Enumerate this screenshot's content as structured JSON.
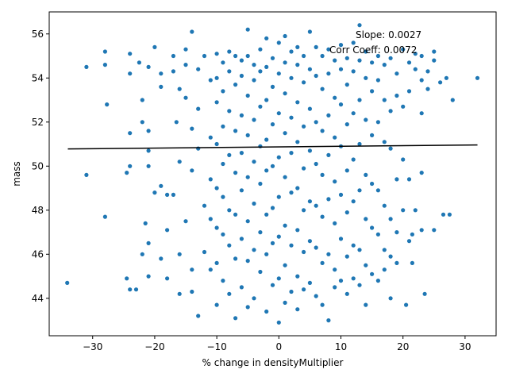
{
  "chart_data": {
    "type": "scatter",
    "title": "",
    "xlabel": "% change in densityMultiplier",
    "ylabel": "mass",
    "xlim": [
      -37,
      35
    ],
    "ylim": [
      42.3,
      57.0
    ],
    "xticks": [
      -30,
      -20,
      -10,
      0,
      10,
      20,
      30
    ],
    "xtick_labels": [
      "−30",
      "−20",
      "−10",
      "0",
      "10",
      "20",
      "30"
    ],
    "yticks": [
      44,
      46,
      48,
      50,
      52,
      54,
      56
    ],
    "ytick_labels": [
      "44",
      "46",
      "48",
      "50",
      "52",
      "54",
      "56"
    ],
    "grid": false,
    "marker_color": "#1f77b4",
    "line_color": "#000000",
    "fit_line": {
      "x": [
        -34,
        32
      ],
      "y": [
        50.78,
        50.96
      ]
    },
    "annotations": [
      "Slope: 0.0027",
      "Corr Coeff: 0.0072"
    ],
    "points": [
      [
        -34.1,
        44.7
      ],
      [
        -31.0,
        54.5
      ],
      [
        -31.0,
        49.6
      ],
      [
        -28.0,
        55.2
      ],
      [
        -28.0,
        54.6
      ],
      [
        -27.7,
        52.8
      ],
      [
        -28.0,
        47.7
      ],
      [
        -24.0,
        55.1
      ],
      [
        -24.0,
        54.2
      ],
      [
        -24.0,
        51.5
      ],
      [
        -24.5,
        49.7
      ],
      [
        -24.0,
        50.0
      ],
      [
        -24.5,
        44.9
      ],
      [
        -24.0,
        44.4
      ],
      [
        -23.0,
        44.4
      ],
      [
        -22.0,
        53.0
      ],
      [
        -22.0,
        52.0
      ],
      [
        -21.0,
        51.6
      ],
      [
        -20.0,
        55.4
      ],
      [
        -22.5,
        54.7
      ],
      [
        -21.0,
        54.5
      ],
      [
        -21.0,
        50.7
      ],
      [
        -21.0,
        50.0
      ],
      [
        -20.0,
        48.8
      ],
      [
        -21.5,
        47.4
      ],
      [
        -21.0,
        46.5
      ],
      [
        -22.0,
        46.0
      ],
      [
        -21.0,
        45.0
      ],
      [
        -19.0,
        54.2
      ],
      [
        -19.0,
        53.6
      ],
      [
        -19.0,
        49.1
      ],
      [
        -18.0,
        48.7
      ],
      [
        -18.0,
        47.1
      ],
      [
        -19.0,
        45.8
      ],
      [
        -18.0,
        44.9
      ],
      [
        -17.0,
        55.0
      ],
      [
        -17.0,
        54.3
      ],
      [
        -16.0,
        53.5
      ],
      [
        -16.5,
        52.0
      ],
      [
        -16.0,
        50.2
      ],
      [
        -17.0,
        48.7
      ],
      [
        -16.0,
        46.0
      ],
      [
        -16.0,
        44.2
      ],
      [
        -15.0,
        55.3
      ],
      [
        -15.0,
        54.6
      ],
      [
        -15.0,
        53.1
      ],
      [
        -14.0,
        56.1
      ],
      [
        -14.0,
        51.7
      ],
      [
        -14.0,
        49.8
      ],
      [
        -15.0,
        47.5
      ],
      [
        -14.0,
        45.3
      ],
      [
        -14.0,
        44.3
      ],
      [
        -13.0,
        54.4
      ],
      [
        -13.0,
        52.6
      ],
      [
        -13.0,
        50.8
      ],
      [
        -12.0,
        48.2
      ],
      [
        -12.0,
        46.1
      ],
      [
        -13.0,
        43.2
      ],
      [
        -12.0,
        55.0
      ],
      [
        -11.0,
        53.9
      ],
      [
        -11.0,
        51.3
      ],
      [
        -11.0,
        49.4
      ],
      [
        -11.0,
        47.6
      ],
      [
        -11.0,
        45.3
      ],
      [
        -10.0,
        55.1
      ],
      [
        -10.0,
        54.0
      ],
      [
        -10.0,
        52.9
      ],
      [
        -10.0,
        51.0
      ],
      [
        -10.0,
        49.0
      ],
      [
        -10.0,
        47.2
      ],
      [
        -10.0,
        45.6
      ],
      [
        -10.0,
        43.7
      ],
      [
        -9.0,
        54.7
      ],
      [
        -9.0,
        53.4
      ],
      [
        -9.0,
        51.8
      ],
      [
        -9.0,
        50.1
      ],
      [
        -9.0,
        48.6
      ],
      [
        -9.0,
        46.9
      ],
      [
        -9.0,
        44.8
      ],
      [
        -8.0,
        55.2
      ],
      [
        -8.0,
        54.3
      ],
      [
        -8.0,
        52.5
      ],
      [
        -8.0,
        50.5
      ],
      [
        -8.0,
        48.0
      ],
      [
        -8.0,
        46.4
      ],
      [
        -8.0,
        44.2
      ],
      [
        -7.0,
        55.0
      ],
      [
        -7.0,
        53.7
      ],
      [
        -7.0,
        51.6
      ],
      [
        -7.0,
        49.7
      ],
      [
        -7.0,
        47.8
      ],
      [
        -7.0,
        45.8
      ],
      [
        -7.0,
        43.1
      ],
      [
        -6.0,
        54.8
      ],
      [
        -6.0,
        54.1
      ],
      [
        -6.0,
        52.3
      ],
      [
        -6.0,
        50.6
      ],
      [
        -6.0,
        48.9
      ],
      [
        -6.0,
        46.7
      ],
      [
        -6.0,
        44.5
      ],
      [
        -5.0,
        56.2
      ],
      [
        -5.0,
        55.0
      ],
      [
        -5.0,
        53.2
      ],
      [
        -5.0,
        51.4
      ],
      [
        -5.0,
        49.5
      ],
      [
        -5.0,
        47.5
      ],
      [
        -5.0,
        45.7
      ],
      [
        -5.0,
        43.6
      ],
      [
        -4.0,
        54.6
      ],
      [
        -4.0,
        53.9
      ],
      [
        -4.0,
        52.1
      ],
      [
        -4.0,
        50.2
      ],
      [
        -4.0,
        48.3
      ],
      [
        -4.0,
        46.2
      ],
      [
        -4.0,
        44.0
      ],
      [
        -3.0,
        55.3
      ],
      [
        -3.0,
        54.3
      ],
      [
        -3.0,
        52.7
      ],
      [
        -3.0,
        50.9
      ],
      [
        -3.0,
        49.2
      ],
      [
        -3.0,
        47.0
      ],
      [
        -3.0,
        45.2
      ],
      [
        -2.0,
        55.8
      ],
      [
        -2.0,
        54.5
      ],
      [
        -2.0,
        53.0
      ],
      [
        -2.0,
        51.2
      ],
      [
        -2.0,
        49.8
      ],
      [
        -2.0,
        47.8
      ],
      [
        -2.0,
        46.0
      ],
      [
        -2.0,
        43.4
      ],
      [
        -1.0,
        54.9
      ],
      [
        -1.0,
        53.6
      ],
      [
        -1.0,
        51.9
      ],
      [
        -1.0,
        50.0
      ],
      [
        -1.0,
        48.1
      ],
      [
        -1.0,
        46.5
      ],
      [
        -1.0,
        44.6
      ],
      [
        0.0,
        55.6
      ],
      [
        0.0,
        54.2
      ],
      [
        0.0,
        52.4
      ],
      [
        0.0,
        50.4
      ],
      [
        0.0,
        48.6
      ],
      [
        0.0,
        46.8
      ],
      [
        0.0,
        44.9
      ],
      [
        0.0,
        42.9
      ],
      [
        1.0,
        55.9
      ],
      [
        1.0,
        54.7
      ],
      [
        1.0,
        53.3
      ],
      [
        1.0,
        51.5
      ],
      [
        1.0,
        49.5
      ],
      [
        1.0,
        47.3
      ],
      [
        1.0,
        45.5
      ],
      [
        1.0,
        43.8
      ],
      [
        2.0,
        55.2
      ],
      [
        2.0,
        54.0
      ],
      [
        2.0,
        52.2
      ],
      [
        2.0,
        50.6
      ],
      [
        2.0,
        48.8
      ],
      [
        2.0,
        46.4
      ],
      [
        2.0,
        44.3
      ],
      [
        3.0,
        55.4
      ],
      [
        3.0,
        54.6
      ],
      [
        3.0,
        52.9
      ],
      [
        3.0,
        51.1
      ],
      [
        3.0,
        49.0
      ],
      [
        3.0,
        47.1
      ],
      [
        3.0,
        45.0
      ],
      [
        3.0,
        43.5
      ],
      [
        4.0,
        55.0
      ],
      [
        4.0,
        53.8
      ],
      [
        4.0,
        51.8
      ],
      [
        4.0,
        49.9
      ],
      [
        4.0,
        48.0
      ],
      [
        4.0,
        46.1
      ],
      [
        4.0,
        44.4
      ],
      [
        5.0,
        56.1
      ],
      [
        5.0,
        54.4
      ],
      [
        5.0,
        52.6
      ],
      [
        5.0,
        50.7
      ],
      [
        5.0,
        48.4
      ],
      [
        5.0,
        46.6
      ],
      [
        5.0,
        44.7
      ],
      [
        6.0,
        55.4
      ],
      [
        6.0,
        54.1
      ],
      [
        6.0,
        52.0
      ],
      [
        6.0,
        50.1
      ],
      [
        6.0,
        48.2
      ],
      [
        6.0,
        46.3
      ],
      [
        6.0,
        44.1
      ],
      [
        7.0,
        55.0
      ],
      [
        7.0,
        53.5
      ],
      [
        7.0,
        51.6
      ],
      [
        7.0,
        49.6
      ],
      [
        7.0,
        47.7
      ],
      [
        7.0,
        45.6
      ],
      [
        7.0,
        43.7
      ],
      [
        8.0,
        55.3
      ],
      [
        8.0,
        54.2
      ],
      [
        8.0,
        52.3
      ],
      [
        8.0,
        50.5
      ],
      [
        8.0,
        48.5
      ],
      [
        8.0,
        46.0
      ],
      [
        8.0,
        43.0
      ],
      [
        9.0,
        54.8
      ],
      [
        9.0,
        53.1
      ],
      [
        9.0,
        51.3
      ],
      [
        9.0,
        49.3
      ],
      [
        9.0,
        47.4
      ],
      [
        9.0,
        45.3
      ],
      [
        9.0,
        44.5
      ],
      [
        10.0,
        55.5
      ],
      [
        10.0,
        54.4
      ],
      [
        10.0,
        52.8
      ],
      [
        10.0,
        50.9
      ],
      [
        10.0,
        48.7
      ],
      [
        10.0,
        46.7
      ],
      [
        10.0,
        44.8
      ],
      [
        11.0,
        54.9
      ],
      [
        11.0,
        53.7
      ],
      [
        11.0,
        51.9
      ],
      [
        11.0,
        49.8
      ],
      [
        11.0,
        47.9
      ],
      [
        11.0,
        45.9
      ],
      [
        11.0,
        44.2
      ],
      [
        12.0,
        55.6
      ],
      [
        12.0,
        54.3
      ],
      [
        12.0,
        52.4
      ],
      [
        12.0,
        50.3
      ],
      [
        12.0,
        48.4
      ],
      [
        12.0,
        46.4
      ],
      [
        12.0,
        44.9
      ],
      [
        13.0,
        56.4
      ],
      [
        13.0,
        54.8
      ],
      [
        13.0,
        53.0
      ],
      [
        13.0,
        51.0
      ],
      [
        13.0,
        48.9
      ],
      [
        13.0,
        46.2
      ],
      [
        13.0,
        44.6
      ],
      [
        14.0,
        55.2
      ],
      [
        14.0,
        54.0
      ],
      [
        14.0,
        52.1
      ],
      [
        14.0,
        49.6
      ],
      [
        14.0,
        47.6
      ],
      [
        14.0,
        45.5
      ],
      [
        14.0,
        43.7
      ],
      [
        15.0,
        54.7
      ],
      [
        15.0,
        53.4
      ],
      [
        15.0,
        51.4
      ],
      [
        15.0,
        49.2
      ],
      [
        15.0,
        47.2
      ],
      [
        15.0,
        45.1
      ],
      [
        16.0,
        55.0
      ],
      [
        16.0,
        53.9
      ],
      [
        16.0,
        52.0
      ],
      [
        16.0,
        48.9
      ],
      [
        16.0,
        46.9
      ],
      [
        16.0,
        44.8
      ],
      [
        17.0,
        54.6
      ],
      [
        17.0,
        53.0
      ],
      [
        17.0,
        51.1
      ],
      [
        17.0,
        48.2
      ],
      [
        17.0,
        46.2
      ],
      [
        17.0,
        45.3
      ],
      [
        18.0,
        54.9
      ],
      [
        18.0,
        52.5
      ],
      [
        18.0,
        50.8
      ],
      [
        18.0,
        47.6
      ],
      [
        18.0,
        45.9
      ],
      [
        18.0,
        44.0
      ],
      [
        19.0,
        54.2
      ],
      [
        19.0,
        53.2
      ],
      [
        19.0,
        49.4
      ],
      [
        19.0,
        47.0
      ],
      [
        19.0,
        45.6
      ],
      [
        20.0,
        55.3
      ],
      [
        20.0,
        52.7
      ],
      [
        20.0,
        50.3
      ],
      [
        20.0,
        48.0
      ],
      [
        21.0,
        54.7
      ],
      [
        21.0,
        53.4
      ],
      [
        21.0,
        49.4
      ],
      [
        21.0,
        46.6
      ],
      [
        20.5,
        43.7
      ],
      [
        22.0,
        55.1
      ],
      [
        22.0,
        54.4
      ],
      [
        22.0,
        48.0
      ],
      [
        21.5,
        46.9
      ],
      [
        21.5,
        45.6
      ],
      [
        23.0,
        55.0
      ],
      [
        23.0,
        53.9
      ],
      [
        23.0,
        52.4
      ],
      [
        23.0,
        49.7
      ],
      [
        23.0,
        47.1
      ],
      [
        23.5,
        44.2
      ],
      [
        24.0,
        54.3
      ],
      [
        24.0,
        53.5
      ],
      [
        25.0,
        55.2
      ],
      [
        25.0,
        54.8
      ],
      [
        25.0,
        47.1
      ],
      [
        26.0,
        53.8
      ],
      [
        27.0,
        54.0
      ],
      [
        26.5,
        47.8
      ],
      [
        27.5,
        47.8
      ],
      [
        28.0,
        53.0
      ],
      [
        32.0,
        54.0
      ]
    ]
  }
}
